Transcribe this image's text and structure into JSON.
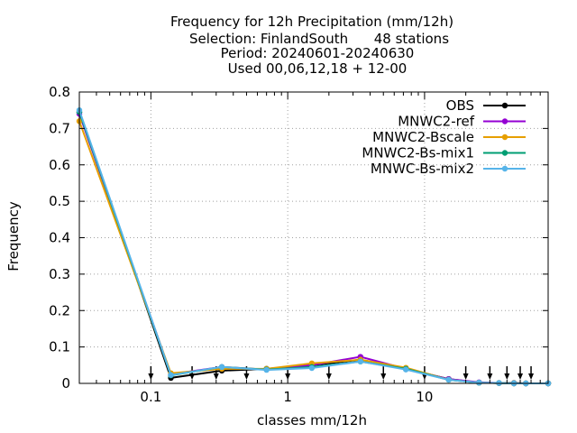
{
  "chart_data": {
    "type": "line",
    "title_lines": [
      "Frequency  for 12h Precipitation (mm/12h)",
      "Selection: FinlandSouth      48 stations",
      "Period: 20240601-20240630",
      "Used 00,06,12,18 + 12-00"
    ],
    "xlabel": "classes mm/12h",
    "ylabel": "Frequency",
    "x_scale": "log",
    "xlim": [
      0.03,
      80
    ],
    "ylim": [
      0,
      0.8
    ],
    "x_ticks": [
      {
        "value": 0.1,
        "label": "0.1"
      },
      {
        "value": 1,
        "label": "1"
      },
      {
        "value": 10,
        "label": "10"
      }
    ],
    "y_ticks": [
      {
        "value": 0,
        "label": "0"
      },
      {
        "value": 0.1,
        "label": "0.1"
      },
      {
        "value": 0.2,
        "label": "0.2"
      },
      {
        "value": 0.3,
        "label": "0.3"
      },
      {
        "value": 0.4,
        "label": "0.4"
      },
      {
        "value": 0.5,
        "label": "0.5"
      },
      {
        "value": 0.6,
        "label": "0.6"
      },
      {
        "value": 0.7,
        "label": "0.7"
      },
      {
        "value": 0.8,
        "label": "0.8"
      }
    ],
    "grid": true,
    "legend_position": "top-right",
    "class_boundaries": [
      0.1,
      0.2,
      0.3,
      0.5,
      1,
      2,
      5,
      10,
      20,
      30,
      40,
      50,
      60
    ],
    "x": [
      0.03,
      0.14,
      0.33,
      0.7,
      1.5,
      3.4,
      7.3,
      15,
      25,
      35,
      45,
      55,
      80
    ],
    "series": [
      {
        "name": "OBS",
        "color": "#000000",
        "marker": "circle",
        "values": [
          0.745,
          0.015,
          0.035,
          0.04,
          0.05,
          0.065,
          0.04,
          0.012,
          0.002,
          0.001,
          0.001,
          0.0,
          0.0
        ]
      },
      {
        "name": "MNWC2-ref",
        "color": "#9400d3",
        "marker": "circle",
        "values": [
          0.74,
          0.025,
          0.045,
          0.038,
          0.05,
          0.073,
          0.04,
          0.012,
          0.003,
          0.001,
          0.0,
          0.0,
          0.0
        ]
      },
      {
        "name": "MNWC2-Bscale",
        "color": "#e69f00",
        "marker": "circle",
        "values": [
          0.72,
          0.028,
          0.04,
          0.04,
          0.055,
          0.065,
          0.043,
          0.01,
          0.002,
          0.001,
          0.0,
          0.0,
          0.0
        ]
      },
      {
        "name": "MNWC2-Bs-mix1",
        "color": "#009e73",
        "marker": "circle",
        "values": [
          0.745,
          0.022,
          0.045,
          0.038,
          0.045,
          0.06,
          0.04,
          0.01,
          0.002,
          0.001,
          0.0,
          0.0,
          0.0
        ]
      },
      {
        "name": "MNWC-Bs-mix2",
        "color": "#56b4e9",
        "marker": "circle",
        "values": [
          0.75,
          0.023,
          0.045,
          0.037,
          0.042,
          0.06,
          0.038,
          0.01,
          0.002,
          0.001,
          0.0,
          0.0,
          0.0
        ]
      }
    ]
  }
}
